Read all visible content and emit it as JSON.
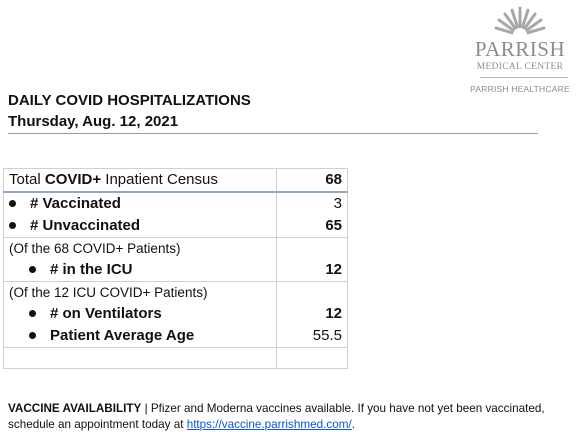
{
  "logo": {
    "brand": "PARRISH",
    "subtitle": "MEDICAL CENTER",
    "parent": "PARRISH HEALTHCARE",
    "color": "#8c8c8c"
  },
  "heading": {
    "title": "DAILY COVID HOSPITALIZATIONS",
    "date": "Thursday, Aug. 12, 2021"
  },
  "census": {
    "header_prefix": "Total ",
    "header_bold": "COVID+",
    "header_suffix": " Inpatient Census",
    "total": "68",
    "vaccinated_label": "# Vaccinated",
    "vaccinated_value": "3",
    "unvaccinated_label": "# Unvaccinated",
    "unvaccinated_value": "65",
    "note_patients": "(Of the 68 COVID+ Patients)",
    "icu_label": "# in the ICU",
    "icu_value": "12",
    "note_icu": "(Of the 12 ICU COVID+ Patients)",
    "ventilators_label": "# on Ventilators",
    "ventilators_value": "12",
    "avg_age_label": "Patient Average Age",
    "avg_age_value": "55.5"
  },
  "footer": {
    "label": "VACCINE AVAILABILITY",
    "separator": " | ",
    "text": "Pfizer and Moderna vaccines available. If you have not yet been vaccinated, schedule an appointment today at ",
    "link": "https://vaccine.parrishmed.com/",
    "end": "."
  }
}
